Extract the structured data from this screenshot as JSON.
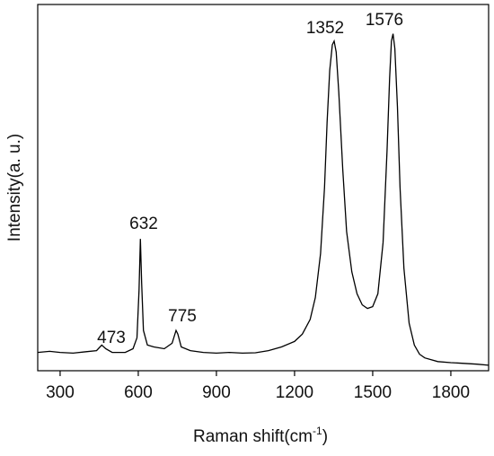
{
  "chart_data": {
    "type": "line",
    "x_label": "Raman shift(cm",
    "x_label_sup": "-1",
    "x_label_end": ")",
    "y_label": "Intensity(a. u.)",
    "annotations": [
      "473",
      "632",
      "775",
      "1352",
      "1576"
    ],
    "xlim": [
      214,
      1945
    ],
    "xticks": [
      300,
      600,
      900,
      1200,
      1500,
      1800
    ],
    "ylim": [
      0,
      100
    ],
    "series": [
      {
        "color": "#000000",
        "x": [
          214,
          260,
          300,
          350,
          400,
          440,
          460,
          475,
          500,
          550,
          580,
          595,
          603,
          608,
          613,
          620,
          635,
          660,
          700,
          730,
          745,
          752,
          765,
          800,
          850,
          900,
          950,
          1000,
          1050,
          1100,
          1150,
          1200,
          1230,
          1260,
          1280,
          1300,
          1315,
          1325,
          1335,
          1345,
          1352,
          1360,
          1370,
          1385,
          1400,
          1420,
          1440,
          1460,
          1480,
          1500,
          1520,
          1540,
          1555,
          1565,
          1572,
          1578,
          1585,
          1595,
          1605,
          1620,
          1640,
          1660,
          1680,
          1700,
          1750,
          1800,
          1850,
          1900,
          1945
        ],
        "values": [
          5,
          5.3,
          5,
          4.8,
          5.2,
          5.5,
          7,
          6,
          5,
          5,
          6,
          9,
          22,
          36,
          24,
          11,
          7,
          6.5,
          6,
          7.5,
          11,
          10,
          6.5,
          5.5,
          5,
          4.8,
          5,
          4.8,
          4.9,
          5.5,
          6.5,
          8,
          10,
          14,
          20,
          32,
          50,
          68,
          82,
          89,
          90,
          87,
          76,
          55,
          38,
          27,
          21,
          18,
          17,
          17.5,
          21,
          35,
          60,
          80,
          90,
          92,
          88,
          72,
          50,
          28,
          13,
          7,
          4.5,
          3.5,
          2.5,
          2.2,
          2,
          1.8,
          1.5
        ]
      }
    ]
  }
}
